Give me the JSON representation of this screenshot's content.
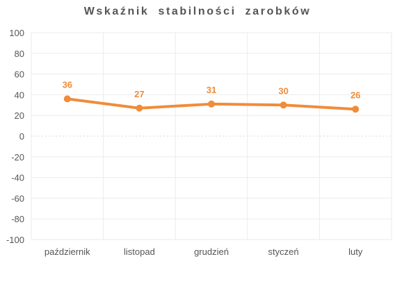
{
  "chart_data": {
    "type": "line",
    "title": "Wskaźnik stabilności zarobków",
    "categories": [
      "październik",
      "listopad",
      "grudzień",
      "styczeń",
      "luty"
    ],
    "series": [
      {
        "values": [
          36,
          27,
          31,
          30,
          26
        ]
      }
    ],
    "ylim": [
      -100,
      100
    ],
    "yticks": [
      100,
      80,
      60,
      40,
      20,
      0,
      -20,
      -40,
      -60,
      -80,
      -100
    ],
    "ytick_labels": [
      "100",
      "80",
      "60",
      "40",
      "20",
      "0",
      "-20",
      "-40",
      "-60",
      "-80",
      "-100"
    ],
    "data_labels": [
      "36",
      "27",
      "31",
      "30",
      "26"
    ],
    "grid": true,
    "xlabel": "",
    "ylabel": "",
    "colors": {
      "line": "#f08c3a",
      "grid": "#ebebeb",
      "zero_line": "#d9d9d9",
      "text": "#555555"
    }
  }
}
